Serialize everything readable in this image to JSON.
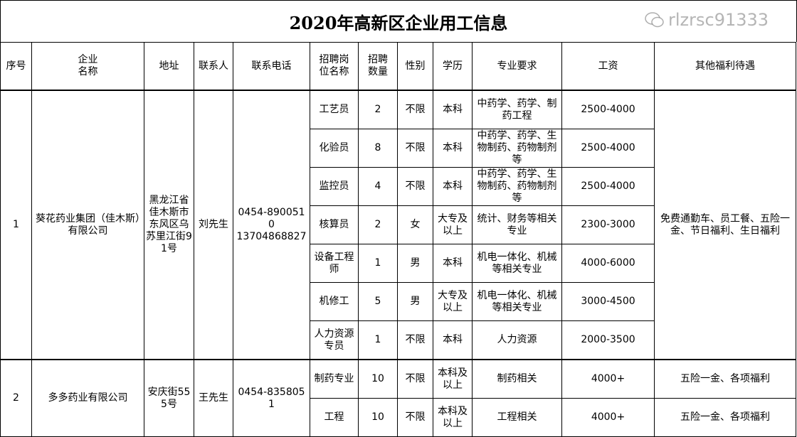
{
  "title": "2020年高新区企业用工信息",
  "headers": [
    "序号",
    "企业\n名称",
    "地址",
    "联系人",
    "联系电话",
    "招聘岗\n位名称",
    "招聘\n数量",
    "性别",
    "学历",
    "专业要求",
    "工资",
    "其他福利待遇"
  ],
  "companies": [
    {
      "no": "1",
      "name": "葵花药业集团（佳木斯）有限公司",
      "address": "黑龙江省佳木斯市东风区乌苏里江街91号",
      "contact": "刘先生",
      "phone": "0454-8900510\n13704868827",
      "benefits": "免费通勤车、员工餐、五险一金、节日福利、生日福利",
      "positions": [
        {
          "title": "工艺员",
          "count": "2",
          "gender": "不限",
          "education": "本科",
          "major": "中药学、药学、制药工程",
          "salary": "2500-4000"
        },
        {
          "title": "化验员",
          "count": "8",
          "gender": "不限",
          "education": "本科",
          "major": "中药学、药学、生物制药、药物制剂等",
          "salary": "2500-4000"
        },
        {
          "title": "监控员",
          "count": "4",
          "gender": "不限",
          "education": "本科",
          "major": "中药学、药学、生物制药、药物制剂等",
          "salary": "2500-4000"
        },
        {
          "title": "核算员",
          "count": "2",
          "gender": "女",
          "education": "大专及以上",
          "major": "统计、财务等相关专业",
          "salary": "2300-3000"
        },
        {
          "title": "设备工程师",
          "count": "1",
          "gender": "男",
          "education": "本科",
          "major": "机电一体化、机械等相关专业",
          "salary": "4000-6000"
        },
        {
          "title": "机修工",
          "count": "5",
          "gender": "男",
          "education": "大专及以上",
          "major": "机电一体化、机械等相关专业",
          "salary": "3000-4500"
        },
        {
          "title": "人力资源专员",
          "count": "1",
          "gender": "不限",
          "education": "本科",
          "major": "人力资源",
          "salary": "2000-3500"
        }
      ]
    },
    {
      "no": "2",
      "name": "多多药业有限公司",
      "address": "安庆街555号",
      "contact": "王先生",
      "phone": "0454-8358051",
      "positions": [
        {
          "title": "制药专业",
          "count": "10",
          "gender": "不限",
          "education": "本科及以上",
          "major": "制药相关",
          "salary": "4000+",
          "benefits": "五险一金、各项福利"
        },
        {
          "title": "工程",
          "count": "10",
          "gender": "不限",
          "education": "本科及以上",
          "major": "工程相关",
          "salary": "4000+",
          "benefits": "五险一金、各项福利"
        }
      ]
    }
  ],
  "watermark": {
    "icon": "wechat-icon",
    "text": "rlzrsc91333"
  }
}
